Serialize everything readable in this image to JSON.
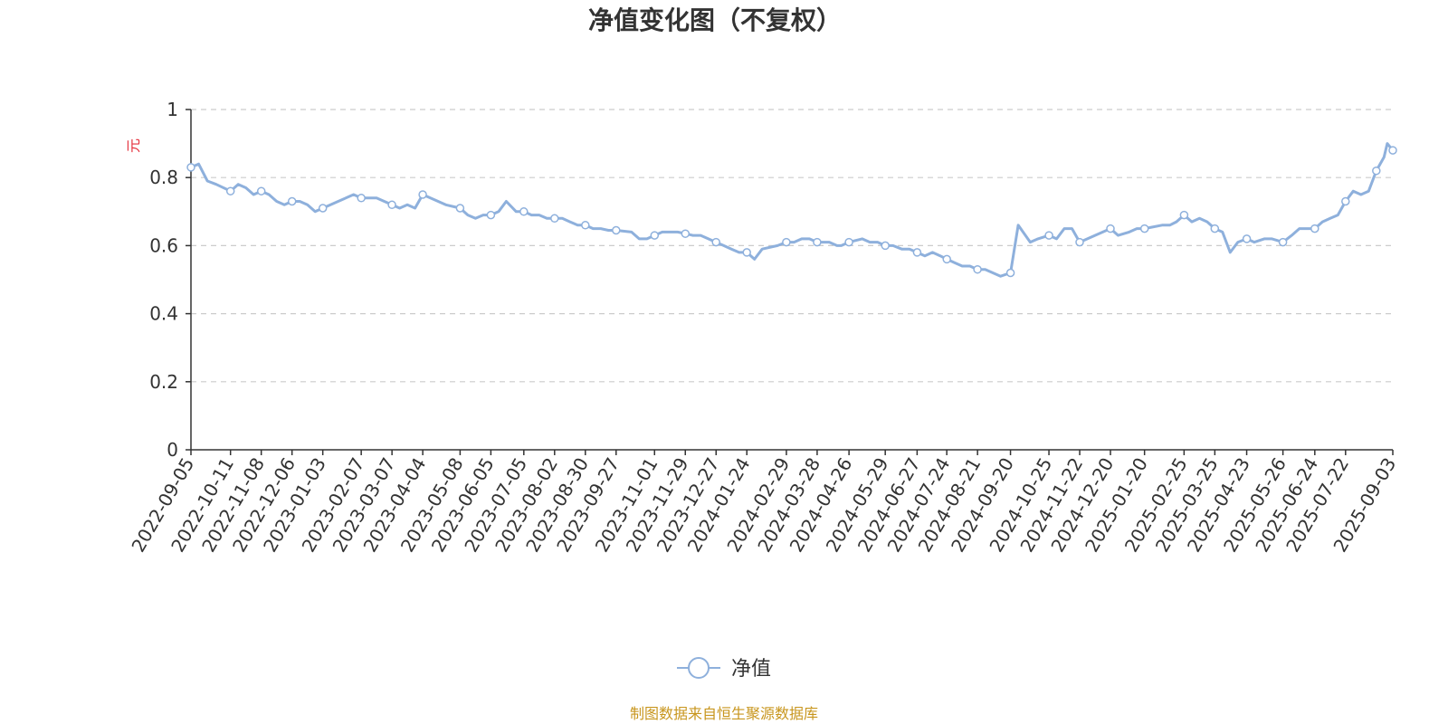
{
  "chart_data": {
    "type": "line",
    "title": "净值变化图（不复权）",
    "ylabel": "元",
    "ylim": [
      0,
      1
    ],
    "yticks": [
      "0",
      "0.2",
      "0.4",
      "0.6",
      "0.8",
      "1"
    ],
    "x_tick_labels": [
      "2022-09-05",
      "2022-10-11",
      "2022-11-08",
      "2022-12-06",
      "2023-01-03",
      "2023-02-07",
      "2023-03-07",
      "2023-04-04",
      "2023-05-08",
      "2023-06-05",
      "2023-07-05",
      "2023-08-02",
      "2023-08-30",
      "2023-09-27",
      "2023-11-01",
      "2023-11-29",
      "2023-12-27",
      "2024-01-24",
      "2024-02-29",
      "2024-03-28",
      "2024-04-26",
      "2024-05-29",
      "2024-06-27",
      "2024-07-24",
      "2024-08-21",
      "2024-09-20",
      "2024-10-25",
      "2024-11-22",
      "2024-12-20",
      "2025-01-20",
      "2025-02-25",
      "2025-03-25",
      "2025-04-23",
      "2025-05-26",
      "2025-06-24",
      "2025-07-22",
      "2025-09-03"
    ],
    "grid": true,
    "legend_position": "bottom-center",
    "color": "#8eb0dc",
    "series": [
      {
        "name": "净值",
        "x": [
          "2022-09-05",
          "2022-09-12",
          "2022-09-20",
          "2022-09-28",
          "2022-10-11",
          "2022-10-18",
          "2022-10-25",
          "2022-11-01",
          "2022-11-08",
          "2022-11-15",
          "2022-11-22",
          "2022-11-29",
          "2022-12-06",
          "2022-12-13",
          "2022-12-20",
          "2022-12-27",
          "2023-01-03",
          "2023-01-10",
          "2023-01-17",
          "2023-01-31",
          "2023-02-07",
          "2023-02-14",
          "2023-02-21",
          "2023-02-28",
          "2023-03-07",
          "2023-03-14",
          "2023-03-21",
          "2023-03-28",
          "2023-04-04",
          "2023-04-11",
          "2023-04-18",
          "2023-04-25",
          "2023-05-08",
          "2023-05-15",
          "2023-05-22",
          "2023-05-29",
          "2023-06-05",
          "2023-06-12",
          "2023-06-19",
          "2023-06-28",
          "2023-07-05",
          "2023-07-12",
          "2023-07-19",
          "2023-07-26",
          "2023-08-02",
          "2023-08-09",
          "2023-08-16",
          "2023-08-23",
          "2023-08-30",
          "2023-09-06",
          "2023-09-13",
          "2023-09-20",
          "2023-09-27",
          "2023-10-11",
          "2023-10-18",
          "2023-10-25",
          "2023-11-01",
          "2023-11-08",
          "2023-11-15",
          "2023-11-22",
          "2023-11-29",
          "2023-12-06",
          "2023-12-13",
          "2023-12-20",
          "2023-12-27",
          "2024-01-03",
          "2024-01-10",
          "2024-01-17",
          "2024-01-24",
          "2024-01-31",
          "2024-02-07",
          "2024-02-21",
          "2024-02-29",
          "2024-03-07",
          "2024-03-14",
          "2024-03-21",
          "2024-03-28",
          "2024-04-08",
          "2024-04-15",
          "2024-04-19",
          "2024-04-26",
          "2024-05-08",
          "2024-05-15",
          "2024-05-22",
          "2024-05-29",
          "2024-06-05",
          "2024-06-13",
          "2024-06-20",
          "2024-06-27",
          "2024-07-04",
          "2024-07-11",
          "2024-07-18",
          "2024-07-24",
          "2024-07-31",
          "2024-08-07",
          "2024-08-14",
          "2024-08-21",
          "2024-08-28",
          "2024-09-04",
          "2024-09-11",
          "2024-09-20",
          "2024-09-27",
          "2024-10-08",
          "2024-10-15",
          "2024-10-25",
          "2024-11-01",
          "2024-11-08",
          "2024-11-15",
          "2024-11-22",
          "2024-11-29",
          "2024-12-06",
          "2024-12-13",
          "2024-12-20",
          "2024-12-27",
          "2025-01-06",
          "2025-01-13",
          "2025-01-20",
          "2025-02-05",
          "2025-02-12",
          "2025-02-18",
          "2025-02-25",
          "2025-03-04",
          "2025-03-11",
          "2025-03-18",
          "2025-03-25",
          "2025-04-01",
          "2025-04-08",
          "2025-04-15",
          "2025-04-23",
          "2025-04-30",
          "2025-05-09",
          "2025-05-16",
          "2025-05-26",
          "2025-06-03",
          "2025-06-10",
          "2025-06-17",
          "2025-06-24",
          "2025-07-01",
          "2025-07-08",
          "2025-07-15",
          "2025-07-22",
          "2025-07-29",
          "2025-08-05",
          "2025-08-12",
          "2025-08-19",
          "2025-08-26",
          "2025-08-29",
          "2025-09-03"
        ],
        "values": [
          0.83,
          0.84,
          0.79,
          0.78,
          0.76,
          0.78,
          0.77,
          0.75,
          0.76,
          0.75,
          0.73,
          0.72,
          0.73,
          0.73,
          0.72,
          0.7,
          0.71,
          0.72,
          0.73,
          0.75,
          0.74,
          0.74,
          0.74,
          0.73,
          0.72,
          0.71,
          0.72,
          0.71,
          0.75,
          0.74,
          0.73,
          0.72,
          0.71,
          0.69,
          0.68,
          0.69,
          0.69,
          0.7,
          0.73,
          0.7,
          0.7,
          0.69,
          0.69,
          0.68,
          0.68,
          0.68,
          0.67,
          0.66,
          0.66,
          0.65,
          0.65,
          0.645,
          0.645,
          0.64,
          0.62,
          0.62,
          0.63,
          0.64,
          0.64,
          0.64,
          0.635,
          0.63,
          0.63,
          0.62,
          0.61,
          0.6,
          0.59,
          0.58,
          0.58,
          0.56,
          0.59,
          0.6,
          0.61,
          0.61,
          0.62,
          0.62,
          0.61,
          0.61,
          0.6,
          0.6,
          0.61,
          0.62,
          0.61,
          0.61,
          0.6,
          0.6,
          0.59,
          0.59,
          0.58,
          0.57,
          0.58,
          0.57,
          0.56,
          0.55,
          0.54,
          0.54,
          0.53,
          0.53,
          0.52,
          0.51,
          0.52,
          0.66,
          0.61,
          0.62,
          0.63,
          0.62,
          0.65,
          0.65,
          0.61,
          0.62,
          0.63,
          0.64,
          0.65,
          0.63,
          0.64,
          0.65,
          0.65,
          0.66,
          0.66,
          0.67,
          0.69,
          0.67,
          0.68,
          0.67,
          0.65,
          0.64,
          0.58,
          0.61,
          0.62,
          0.61,
          0.62,
          0.62,
          0.61,
          0.63,
          0.65,
          0.65,
          0.65,
          0.67,
          0.68,
          0.69,
          0.73,
          0.76,
          0.75,
          0.76,
          0.82,
          0.86,
          0.9,
          0.88
        ]
      }
    ]
  },
  "legend": {
    "label": "净值"
  },
  "footer": {
    "source": "制图数据来自恒生聚源数据库"
  }
}
